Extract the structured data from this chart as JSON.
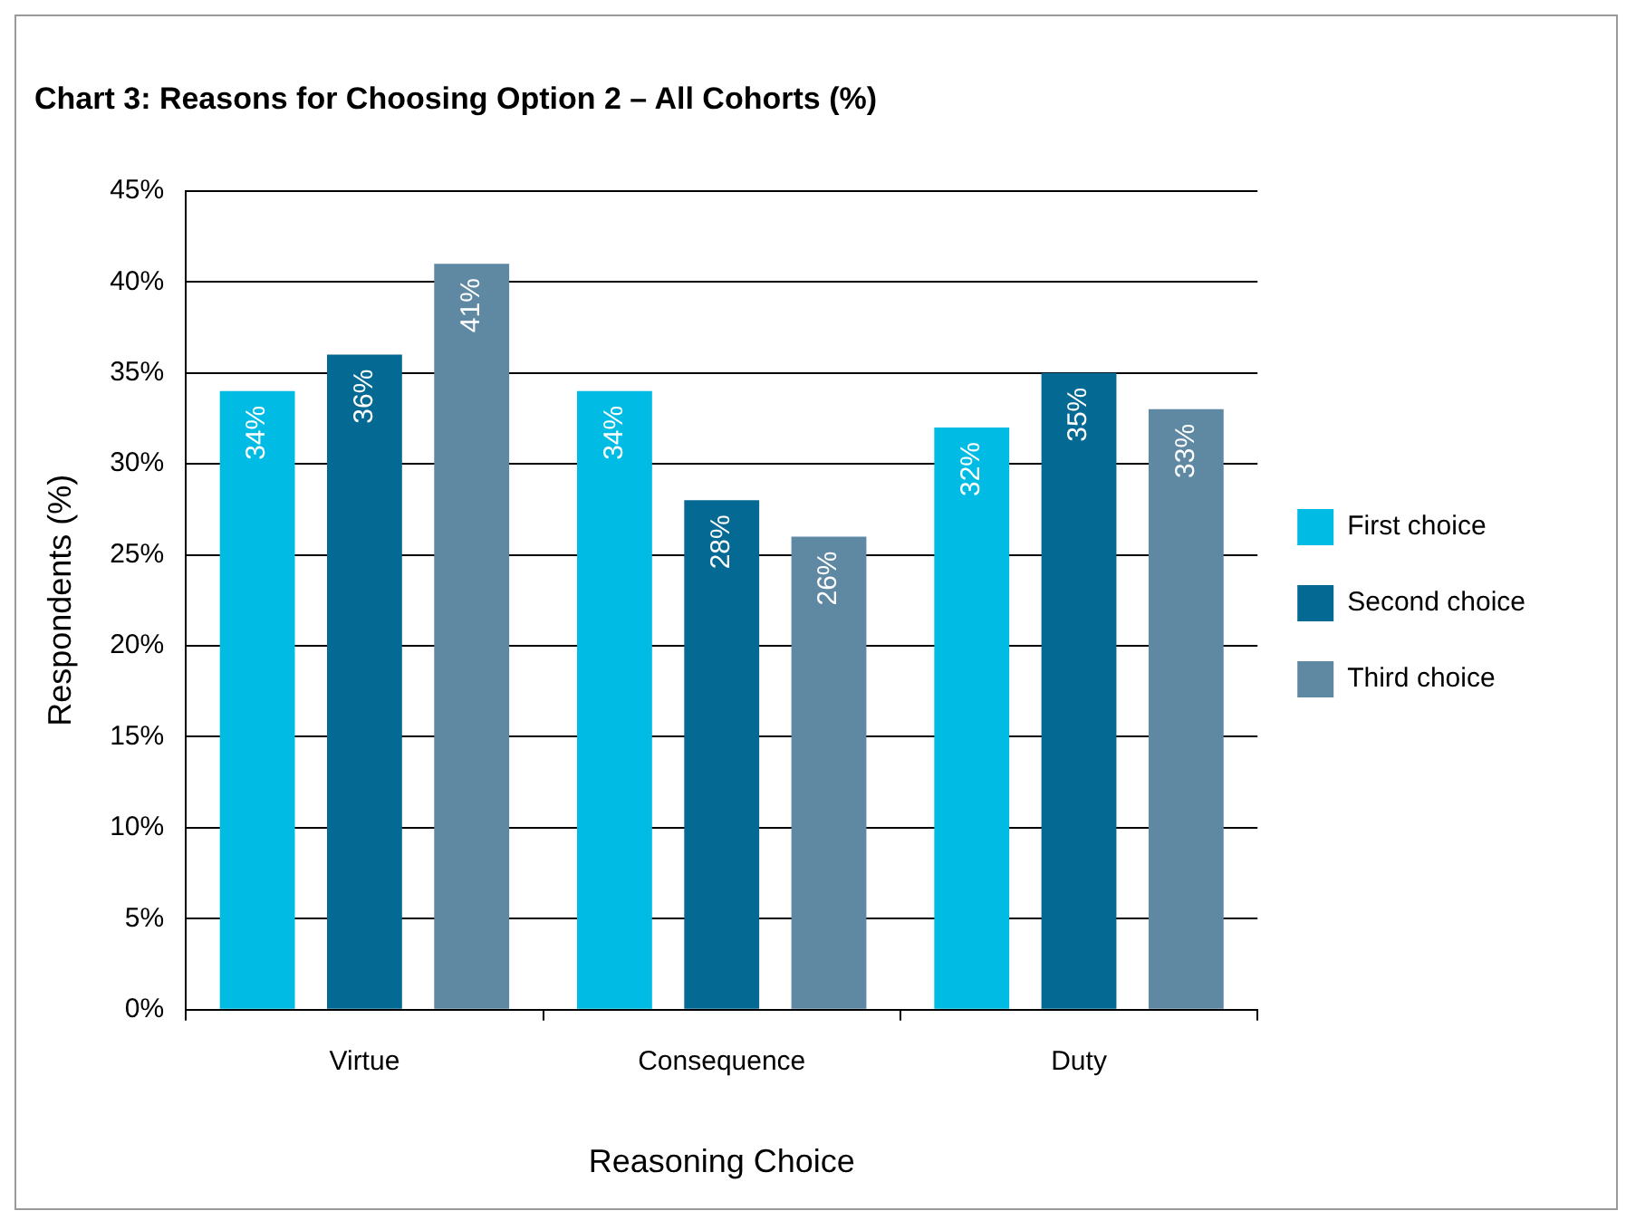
{
  "chart_data": {
    "type": "bar",
    "title": "Chart 3: Reasons for Choosing Option 2 – All Cohorts (%)",
    "xlabel": "Reasoning Choice",
    "ylabel": "Respondents (%)",
    "categories": [
      "Virtue",
      "Consequence",
      "Duty"
    ],
    "series": [
      {
        "name": "First choice",
        "color": "#00bce4",
        "values": [
          34,
          34,
          32
        ],
        "value_labels": [
          "34%",
          "34%",
          "32%"
        ]
      },
      {
        "name": "Second choice",
        "color": "#056a93",
        "values": [
          36,
          28,
          35
        ],
        "value_labels": [
          "36%",
          "28%",
          "35%"
        ]
      },
      {
        "name": "Third choice",
        "color": "#5f88a3",
        "values": [
          41,
          26,
          33
        ],
        "value_labels": [
          "41%",
          "26%",
          "33%"
        ]
      }
    ],
    "ylim": [
      0,
      45
    ],
    "yticks": [
      {
        "value": 0,
        "label": "0%"
      },
      {
        "value": 5,
        "label": "5%"
      },
      {
        "value": 10,
        "label": "10%"
      },
      {
        "value": 15,
        "label": "15%"
      },
      {
        "value": 20,
        "label": "20%"
      },
      {
        "value": 25,
        "label": "25%"
      },
      {
        "value": 30,
        "label": "30%"
      },
      {
        "value": 35,
        "label": "35%"
      },
      {
        "value": 40,
        "label": "40%"
      },
      {
        "value": 45,
        "label": "45%"
      }
    ],
    "grid": "y",
    "legend": "right"
  }
}
